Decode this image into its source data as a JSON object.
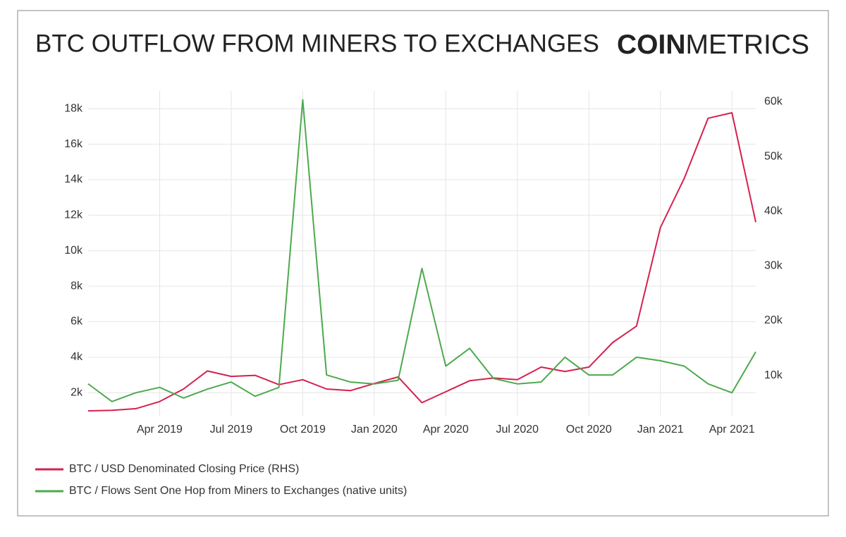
{
  "logo": {
    "bold": "COIN",
    "light": "METRICS"
  },
  "chart_data": {
    "type": "line",
    "title": "BTC OUTFLOW FROM MINERS TO EXCHANGES",
    "x": [
      "2019-01",
      "2019-02",
      "2019-03",
      "2019-04",
      "2019-05",
      "2019-06",
      "2019-07",
      "2019-08",
      "2019-09",
      "2019-10",
      "2019-11",
      "2019-12",
      "2020-01",
      "2020-02",
      "2020-03",
      "2020-04",
      "2020-05",
      "2020-06",
      "2020-07",
      "2020-08",
      "2020-09",
      "2020-10",
      "2020-11",
      "2020-12",
      "2021-01",
      "2021-02",
      "2021-03",
      "2021-04",
      "2021-05"
    ],
    "xlim": [
      "2019-01",
      "2021-05"
    ],
    "xticks": [
      {
        "value": "2019-04",
        "label": "Apr 2019"
      },
      {
        "value": "2019-07",
        "label": "Jul 2019"
      },
      {
        "value": "2019-10",
        "label": "Oct 2019"
      },
      {
        "value": "2020-01",
        "label": "Jan 2020"
      },
      {
        "value": "2020-04",
        "label": "Apr 2020"
      },
      {
        "value": "2020-07",
        "label": "Jul 2020"
      },
      {
        "value": "2020-10",
        "label": "Oct 2020"
      },
      {
        "value": "2021-01",
        "label": "Jan 2021"
      },
      {
        "value": "2021-04",
        "label": "Apr 2021"
      }
    ],
    "ylim": [
      700,
      19000
    ],
    "yticks": [
      {
        "value": 2000,
        "label": "2k"
      },
      {
        "value": 4000,
        "label": "4k"
      },
      {
        "value": 6000,
        "label": "6k"
      },
      {
        "value": 8000,
        "label": "8k"
      },
      {
        "value": 10000,
        "label": "10k"
      },
      {
        "value": 12000,
        "label": "12k"
      },
      {
        "value": 14000,
        "label": "14k"
      },
      {
        "value": 16000,
        "label": "16k"
      },
      {
        "value": 18000,
        "label": "18k"
      }
    ],
    "y2lim": [
      2600,
      62000
    ],
    "y2ticks": [
      {
        "value": 10000,
        "label": "10k"
      },
      {
        "value": 20000,
        "label": "20k"
      },
      {
        "value": 30000,
        "label": "30k"
      },
      {
        "value": 40000,
        "label": "40k"
      },
      {
        "value": 50000,
        "label": "50k"
      },
      {
        "value": 60000,
        "label": "60k"
      }
    ],
    "grid": true,
    "legend": "bottom-left",
    "series": [
      {
        "name": "BTC / USD Denominated Closing Price (RHS)",
        "color": "#d6204f",
        "axis": "y2",
        "values": [
          3500,
          3600,
          3900,
          5200,
          7500,
          10800,
          9800,
          10000,
          8300,
          9200,
          7500,
          7200,
          8500,
          9700,
          5000,
          7000,
          9000,
          9500,
          9200,
          11500,
          10700,
          11500,
          16000,
          19000,
          37000,
          46000,
          57000,
          58000,
          38000
        ]
      },
      {
        "name": "BTC / Flows Sent One Hop from Miners to Exchanges (native units)",
        "color": "#4caa4c",
        "values": [
          2500,
          1500,
          2000,
          2300,
          1700,
          2200,
          2600,
          1800,
          2300,
          18500,
          3000,
          2600,
          2500,
          2700,
          9000,
          3500,
          4500,
          2800,
          2500,
          2600,
          4000,
          3000,
          3000,
          4000,
          3800,
          3500,
          2500,
          2000,
          4300
        ]
      }
    ]
  }
}
